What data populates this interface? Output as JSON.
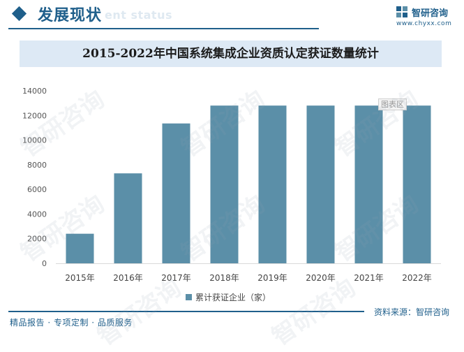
{
  "header": {
    "section_title": "发展现状",
    "section_ghost": "ent status",
    "logo_name": "智研咨询",
    "logo_url": "www.chyxx.com"
  },
  "chart_data": {
    "type": "bar",
    "title": "2015-2022年中国系统集成企业资质认定获证数量统计",
    "categories": [
      "2015年",
      "2016年",
      "2017年",
      "2018年",
      "2019年",
      "2020年",
      "2021年",
      "2022年"
    ],
    "series": [
      {
        "name": "累计获证企业（家）",
        "values": [
          2400,
          7300,
          11350,
          12800,
          12800,
          12800,
          12800,
          12800
        ]
      }
    ],
    "ylim": [
      0,
      14000
    ],
    "yticks": [
      0,
      2000,
      4000,
      6000,
      8000,
      10000,
      12000,
      14000
    ],
    "grid": false,
    "legend": "bottom",
    "color": "#5b8fa8"
  },
  "tooltip_tag": "图表区",
  "footer": {
    "left": "精品报告 · 专项定制 · 品质服务",
    "right": "资料来源：智研咨询"
  },
  "watermark": "智研咨询"
}
